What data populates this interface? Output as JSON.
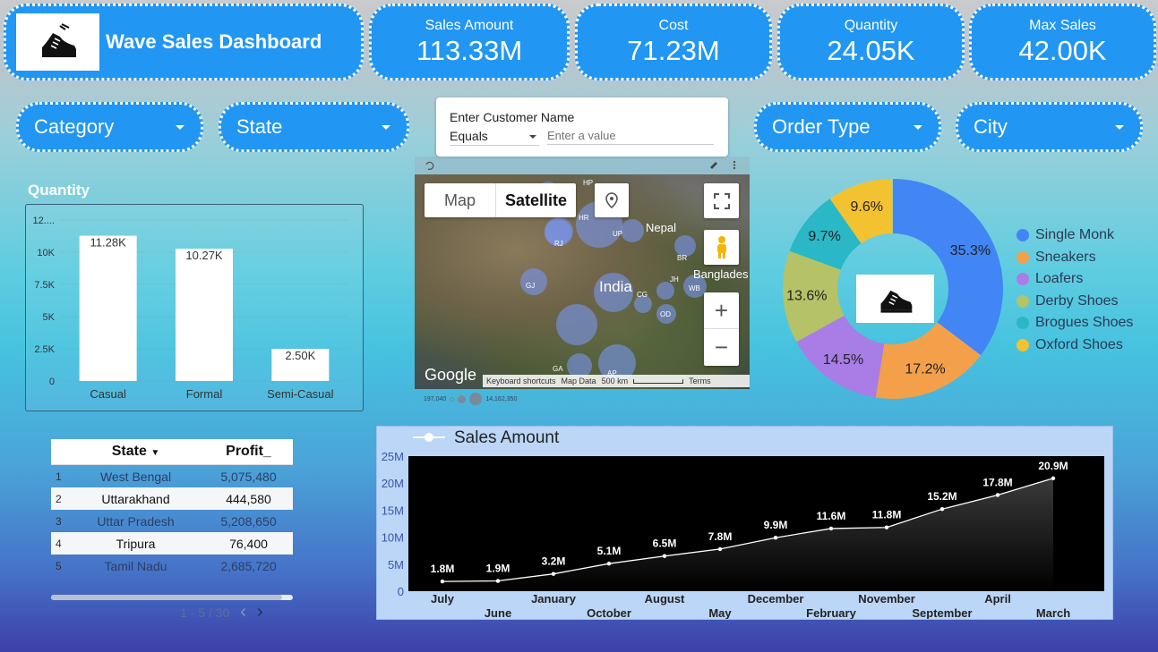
{
  "header": {
    "title": "Wave Sales Dashboard",
    "kpis": [
      {
        "label": "Sales Amount",
        "value": "113.33M"
      },
      {
        "label": "Cost",
        "value": "71.23M"
      },
      {
        "label": "Quantity",
        "value": "24.05K"
      },
      {
        "label": "Max Sales",
        "value": "42.00K"
      }
    ]
  },
  "filters": {
    "category": "Category",
    "state": "State",
    "order_type": "Order Type",
    "city": "City"
  },
  "customer_filter": {
    "title": "Enter Customer Name",
    "operator": "Equals",
    "placeholder": "Enter a value"
  },
  "quantity_chart": {
    "title": "Quantity",
    "y_ticks": [
      "12....",
      "10K",
      "7.5K",
      "5K",
      "2.5K",
      "0"
    ]
  },
  "map": {
    "map_label": "Map",
    "satellite_label": "Satellite",
    "google": "Google",
    "keyboard": "Keyboard shortcuts",
    "map_data": "Map Data",
    "scale": "500 km",
    "terms": "Terms",
    "legend_min": "197,040",
    "legend_max": "14,162,350",
    "labels": {
      "nepal": "Nepal",
      "india": "India",
      "bangladesh": "Banglades"
    },
    "states": [
      "HP",
      "PB",
      "HR",
      "UP",
      "RJ",
      "BR",
      "GJ",
      "JH",
      "WB",
      "CG",
      "OD",
      "GA",
      "AP"
    ]
  },
  "donut": {
    "slices": [
      {
        "name": "Single Monk",
        "pct": 35.3,
        "label": "35.3%",
        "color": "#4285f4"
      },
      {
        "name": "Sneakers",
        "pct": 17.2,
        "label": "17.2%",
        "color": "#f4a04a"
      },
      {
        "name": "Loafers",
        "pct": 14.5,
        "label": "14.5%",
        "color": "#a87de6"
      },
      {
        "name": "Derby Shoes",
        "pct": 13.6,
        "label": "13.6%",
        "color": "#b5c267"
      },
      {
        "name": "Brogues Shoes",
        "pct": 9.7,
        "label": "9.7%",
        "color": "#2ab7c6"
      },
      {
        "name": "Oxford Shoes",
        "pct": 9.6,
        "label": "9.6%",
        "color": "#f2c230"
      }
    ]
  },
  "profit_table": {
    "headers": [
      "State",
      "Profit_"
    ],
    "rows": [
      {
        "n": "1",
        "state": "West Bengal",
        "profit": "5,075,480"
      },
      {
        "n": "2",
        "state": "Uttarakhand",
        "profit": "444,580"
      },
      {
        "n": "3",
        "state": "Uttar Pradesh",
        "profit": "5,208,650"
      },
      {
        "n": "4",
        "state": "Tripura",
        "profit": "76,400"
      },
      {
        "n": "5",
        "state": "Tamil Nadu",
        "profit": "2,685,720"
      }
    ],
    "pager": "1 - 5 / 30"
  },
  "chart_data": [
    {
      "type": "bar",
      "title": "Quantity",
      "categories": [
        "Casual",
        "Formal",
        "Semi-Casual"
      ],
      "values": [
        11280,
        10270,
        2500
      ],
      "data_labels": [
        "11.28K",
        "10.27K",
        "2.50K"
      ],
      "ylim": [
        0,
        12500
      ]
    },
    {
      "type": "pie",
      "categories": [
        "Single Monk",
        "Sneakers",
        "Loafers",
        "Derby Shoes",
        "Brogues Shoes",
        "Oxford Shoes"
      ],
      "values": [
        35.3,
        17.2,
        14.5,
        13.6,
        9.7,
        9.6
      ],
      "legend": "right"
    },
    {
      "type": "line",
      "series": [
        {
          "name": "Sales Amount",
          "values": [
            1.8,
            1.9,
            3.2,
            5.1,
            6.5,
            7.8,
            9.9,
            11.6,
            11.8,
            15.2,
            17.8,
            20.9
          ]
        }
      ],
      "categories": [
        "July",
        "June",
        "January",
        "October",
        "August",
        "May",
        "December",
        "February",
        "November",
        "September",
        "April",
        "March"
      ],
      "data_labels": [
        "1.8M",
        "1.9M",
        "3.2M",
        "5.1M",
        "6.5M",
        "7.8M",
        "9.9M",
        "11.6M",
        "11.8M",
        "15.2M",
        "17.8M",
        "20.9M"
      ],
      "y_ticks": [
        "25M",
        "20M",
        "15M",
        "10M",
        "5M",
        "0"
      ],
      "ylim": [
        0,
        25
      ],
      "legend": "top-left"
    }
  ]
}
